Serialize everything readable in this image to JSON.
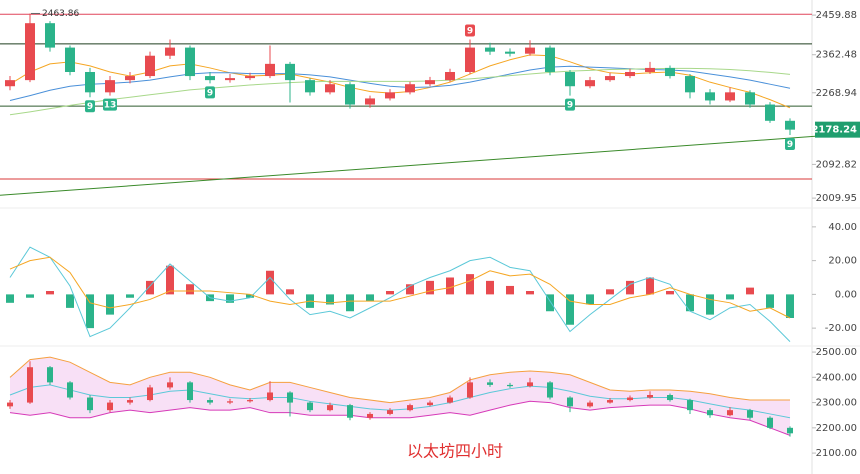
{
  "caption": "以太坊四小时",
  "chart_data": {
    "type": "candlestick",
    "up_color": "#e84a4f",
    "down_color": "#2bb38a",
    "candles": {
      "open": [
        2285,
        2300,
        2440,
        2380,
        2320,
        2270,
        2300,
        2310,
        2360,
        2380,
        2310,
        2300,
        2305,
        2310,
        2340,
        2300,
        2270,
        2290,
        2240,
        2255,
        2270,
        2290,
        2300,
        2320,
        2380,
        2370,
        2365,
        2380,
        2320,
        2285,
        2300,
        2310,
        2320,
        2330,
        2310,
        2270,
        2250,
        2270,
        2240,
        2200
      ],
      "high": [
        2310,
        2463.86,
        2445,
        2385,
        2330,
        2310,
        2320,
        2370,
        2400,
        2385,
        2320,
        2315,
        2318,
        2385,
        2345,
        2305,
        2300,
        2295,
        2262,
        2278,
        2296,
        2308,
        2328,
        2400,
        2392,
        2378,
        2398,
        2385,
        2325,
        2308,
        2318,
        2328,
        2345,
        2336,
        2315,
        2278,
        2282,
        2275,
        2246,
        2206
      ],
      "low": [
        2275,
        2295,
        2370,
        2312,
        2258,
        2262,
        2292,
        2305,
        2352,
        2300,
        2292,
        2294,
        2300,
        2305,
        2245,
        2262,
        2265,
        2230,
        2232,
        2250,
        2265,
        2285,
        2296,
        2315,
        2362,
        2358,
        2360,
        2312,
        2262,
        2280,
        2296,
        2305,
        2315,
        2304,
        2255,
        2240,
        2246,
        2232,
        2195,
        2165
      ],
      "close": [
        2300,
        2440,
        2380,
        2320,
        2270,
        2300,
        2310,
        2360,
        2380,
        2310,
        2300,
        2305,
        2310,
        2340,
        2300,
        2270,
        2290,
        2240,
        2255,
        2270,
        2290,
        2300,
        2320,
        2380,
        2370,
        2365,
        2380,
        2320,
        2285,
        2300,
        2310,
        2320,
        2330,
        2310,
        2270,
        2250,
        2270,
        2240,
        2200,
        2178.24
      ]
    },
    "series": [
      {
        "color": "#f5a623",
        "values": [
          2290,
          2320,
          2340,
          2345,
          2335,
          2320,
          2310,
          2320,
          2335,
          2340,
          2330,
          2318,
          2310,
          2312,
          2315,
          2305,
          2295,
          2282,
          2272,
          2268,
          2272,
          2282,
          2295,
          2315,
          2335,
          2350,
          2362,
          2360,
          2345,
          2328,
          2318,
          2315,
          2318,
          2320,
          2312,
          2295,
          2282,
          2270,
          2252,
          2232
        ]
      },
      {
        "color": "#4a90d9",
        "values": [
          2250,
          2262,
          2275,
          2285,
          2290,
          2292,
          2295,
          2300,
          2308,
          2315,
          2318,
          2318,
          2316,
          2316,
          2316,
          2313,
          2308,
          2300,
          2292,
          2285,
          2282,
          2283,
          2287,
          2295,
          2305,
          2315,
          2325,
          2332,
          2334,
          2332,
          2330,
          2328,
          2326,
          2325,
          2322,
          2315,
          2308,
          2300,
          2290,
          2280
        ]
      },
      {
        "color": "#a8d88a",
        "values": [
          2215,
          2222,
          2230,
          2238,
          2245,
          2252,
          2258,
          2264,
          2270,
          2276,
          2280,
          2284,
          2288,
          2291,
          2294,
          2296,
          2297,
          2297,
          2297,
          2297,
          2297,
          2298,
          2300,
          2303,
          2307,
          2311,
          2315,
          2319,
          2322,
          2324,
          2326,
          2327,
          2328,
          2329,
          2329,
          2328,
          2326,
          2323,
          2319,
          2314
        ]
      }
    ],
    "levels": [
      {
        "value": 2462,
        "color": "#e0455a"
      },
      {
        "value": 2389,
        "color": "#1f3d1f"
      },
      {
        "value": 2236,
        "color": "#2d5a2d"
      },
      {
        "value": 2057,
        "color": "#d83a3a"
      }
    ],
    "trendline": {
      "values": [
        2017,
        2170
      ],
      "color": "#3a8a2a"
    },
    "ylim": [
      1993,
      2497
    ],
    "yticks": [
      2459.88,
      2362.48,
      2268.94,
      2092.82,
      2009.95
    ],
    "td_marks": [
      {
        "label": "9",
        "index": 4,
        "side": "below",
        "color": "#2bb38a"
      },
      {
        "label": "13",
        "index": 5,
        "side": "below",
        "color": "#2bb38a"
      },
      {
        "label": "9",
        "index": 10,
        "side": "below",
        "color": "#2bb38a"
      },
      {
        "label": "9",
        "index": 23,
        "side": "above",
        "color": "#e84a4f"
      },
      {
        "label": "9",
        "index": 28,
        "side": "below",
        "color": "#2bb38a"
      },
      {
        "label": "9",
        "index": 39,
        "side": "below",
        "color": "#2bb38a"
      }
    ],
    "macd": {
      "hist": [
        -5,
        -2,
        2,
        -8,
        -20,
        -12,
        -2,
        8,
        17,
        6,
        -4,
        -5,
        -2,
        14,
        3,
        -8,
        -6,
        -10,
        -4,
        2,
        6,
        8,
        10,
        12,
        8,
        5,
        2,
        -10,
        -18,
        -6,
        3,
        8,
        10,
        2,
        -10,
        -12,
        -3,
        4,
        -8,
        -14
      ],
      "dif": {
        "color": "#5bc8d8",
        "values": [
          10,
          28,
          22,
          5,
          -25,
          -20,
          -8,
          5,
          18,
          8,
          -2,
          -4,
          -2,
          10,
          -3,
          -12,
          -10,
          -14,
          -8,
          -2,
          5,
          10,
          14,
          20,
          22,
          16,
          14,
          -4,
          -22,
          -12,
          -3,
          6,
          10,
          6,
          -10,
          -15,
          -8,
          -6,
          -16,
          -28
        ]
      },
      "dea": {
        "color": "#f5a623",
        "values": [
          15,
          20,
          22,
          13,
          -5,
          -8,
          -6,
          -3,
          2,
          2,
          2,
          1,
          0,
          -4,
          -6,
          -4,
          -5,
          -4,
          -4,
          -4,
          -1,
          2,
          4,
          8,
          14,
          11,
          12,
          6,
          -4,
          -6,
          -6,
          -2,
          0,
          4,
          0,
          -3,
          -5,
          -10,
          -8,
          -14
        ]
      },
      "ylim": [
        -30,
        50
      ],
      "yticks": [
        {
          "value": 40,
          "label": "40.00"
        },
        {
          "value": 20,
          "label": "20.00"
        },
        {
          "value": 0,
          "label": "0.00"
        },
        {
          "value": -20,
          "label": "-20.00"
        }
      ]
    },
    "bollinger": {
      "upper": {
        "color": "#f5a040",
        "values": [
          2400,
          2470,
          2480,
          2460,
          2420,
          2380,
          2370,
          2400,
          2420,
          2420,
          2400,
          2370,
          2350,
          2380,
          2380,
          2360,
          2340,
          2320,
          2310,
          2300,
          2310,
          2320,
          2340,
          2390,
          2410,
          2420,
          2425,
          2420,
          2410,
          2380,
          2350,
          2345,
          2350,
          2350,
          2345,
          2335,
          2320,
          2310,
          2310,
          2310
        ]
      },
      "mid": {
        "color": "#5bc8d8",
        "values": [
          2330,
          2360,
          2370,
          2350,
          2330,
          2320,
          2320,
          2330,
          2345,
          2350,
          2335,
          2320,
          2315,
          2320,
          2320,
          2305,
          2295,
          2285,
          2275,
          2270,
          2275,
          2285,
          2300,
          2320,
          2340,
          2355,
          2365,
          2360,
          2345,
          2325,
          2315,
          2315,
          2320,
          2320,
          2310,
          2295,
          2280,
          2270,
          2255,
          2240
        ]
      },
      "lower": {
        "color": "#d63ab8",
        "values": [
          2260,
          2250,
          2260,
          2240,
          2240,
          2260,
          2270,
          2260,
          2270,
          2280,
          2270,
          2270,
          2280,
          2260,
          2260,
          2250,
          2250,
          2250,
          2240,
          2240,
          2240,
          2250,
          2260,
          2250,
          2270,
          2290,
          2305,
          2300,
          2280,
          2270,
          2280,
          2285,
          2290,
          2290,
          2275,
          2255,
          2240,
          2230,
          2200,
          2170
        ]
      },
      "fill": "#f6d8f4",
      "ylim": [
        2033,
        2528
      ],
      "yticks": [
        {
          "value": 2500,
          "label": "2500.00"
        },
        {
          "value": 2400,
          "label": "2400.00"
        },
        {
          "value": 2300,
          "label": "2300.00"
        },
        {
          "value": 2200,
          "label": "2200.00"
        },
        {
          "value": 2100,
          "label": "2100.00"
        }
      ]
    }
  }
}
